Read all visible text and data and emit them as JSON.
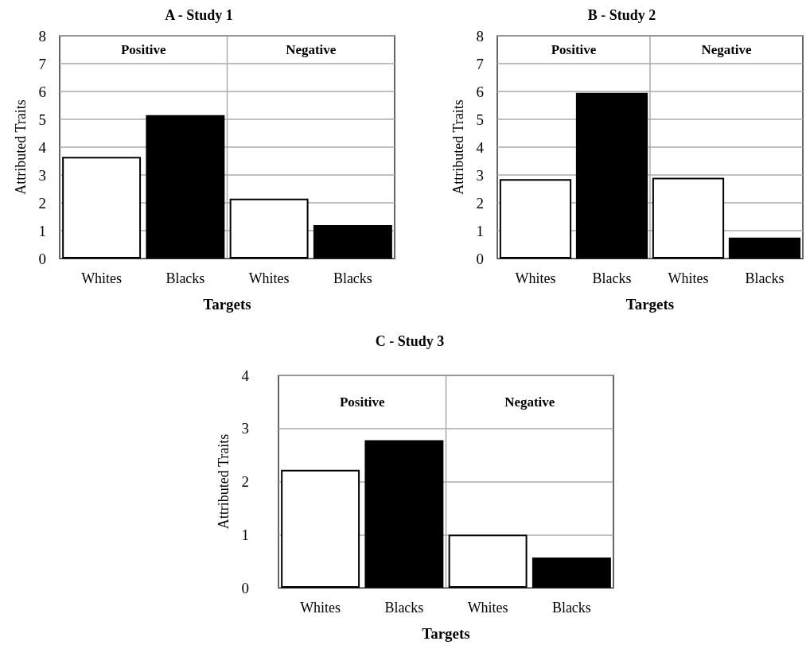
{
  "chart_data": [
    {
      "type": "bar",
      "title": "A - Study 1",
      "xlabel": "Targets",
      "ylabel": "Attributed Traits",
      "categories": [
        "Whites",
        "Blacks",
        "Whites",
        "Blacks"
      ],
      "values": [
        3.65,
        5.15,
        2.15,
        1.2
      ],
      "colors": [
        "#ffffff",
        "#000000",
        "#ffffff",
        "#000000"
      ],
      "ylim": [
        0,
        8
      ],
      "yticks": [
        0,
        1,
        2,
        3,
        4,
        5,
        6,
        7,
        8
      ],
      "grid": "y",
      "annotations": [
        "Positive",
        "Negative"
      ]
    },
    {
      "type": "bar",
      "title": "B - Study 2",
      "xlabel": "Targets",
      "ylabel": "Attributed Traits",
      "categories": [
        "Whites",
        "Blacks",
        "Whites",
        "Blacks"
      ],
      "values": [
        2.85,
        5.95,
        2.9,
        0.75
      ],
      "colors": [
        "#ffffff",
        "#000000",
        "#ffffff",
        "#000000"
      ],
      "ylim": [
        0,
        8
      ],
      "yticks": [
        0,
        1,
        2,
        3,
        4,
        5,
        6,
        7,
        8
      ],
      "grid": "y",
      "annotations": [
        "Positive",
        "Negative"
      ]
    },
    {
      "type": "bar",
      "title": "C - Study 3",
      "xlabel": "Targets",
      "ylabel": "Attributed Traits",
      "categories": [
        "Whites",
        "Blacks",
        "Whites",
        "Blacks"
      ],
      "values": [
        2.22,
        2.78,
        1.0,
        0.57
      ],
      "colors": [
        "#ffffff",
        "#000000",
        "#ffffff",
        "#000000"
      ],
      "ylim": [
        0,
        4
      ],
      "yticks": [
        0,
        1,
        2,
        3,
        4
      ],
      "grid": "y",
      "annotations": [
        "Positive",
        "Negative"
      ]
    }
  ]
}
